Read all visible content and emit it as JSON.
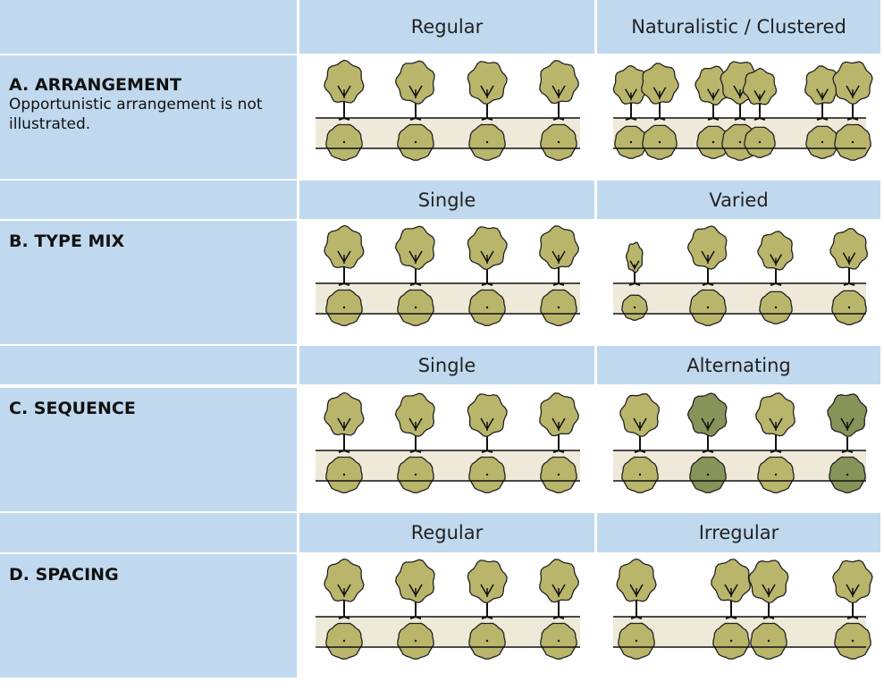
{
  "sections": [
    {
      "options": [
        "Regular",
        "Naturalistic / Clustered"
      ],
      "title": "A. ARRANGEMENT",
      "note": "Opportunistic arrangement is not illustrated."
    },
    {
      "options": [
        "Single",
        "Varied"
      ],
      "title": "B. TYPE MIX"
    },
    {
      "options": [
        "Single",
        "Alternating"
      ],
      "title": "C. SEQUENCE"
    },
    {
      "options": [
        "Regular",
        "Irregular"
      ],
      "title": "D. SPACING"
    }
  ]
}
